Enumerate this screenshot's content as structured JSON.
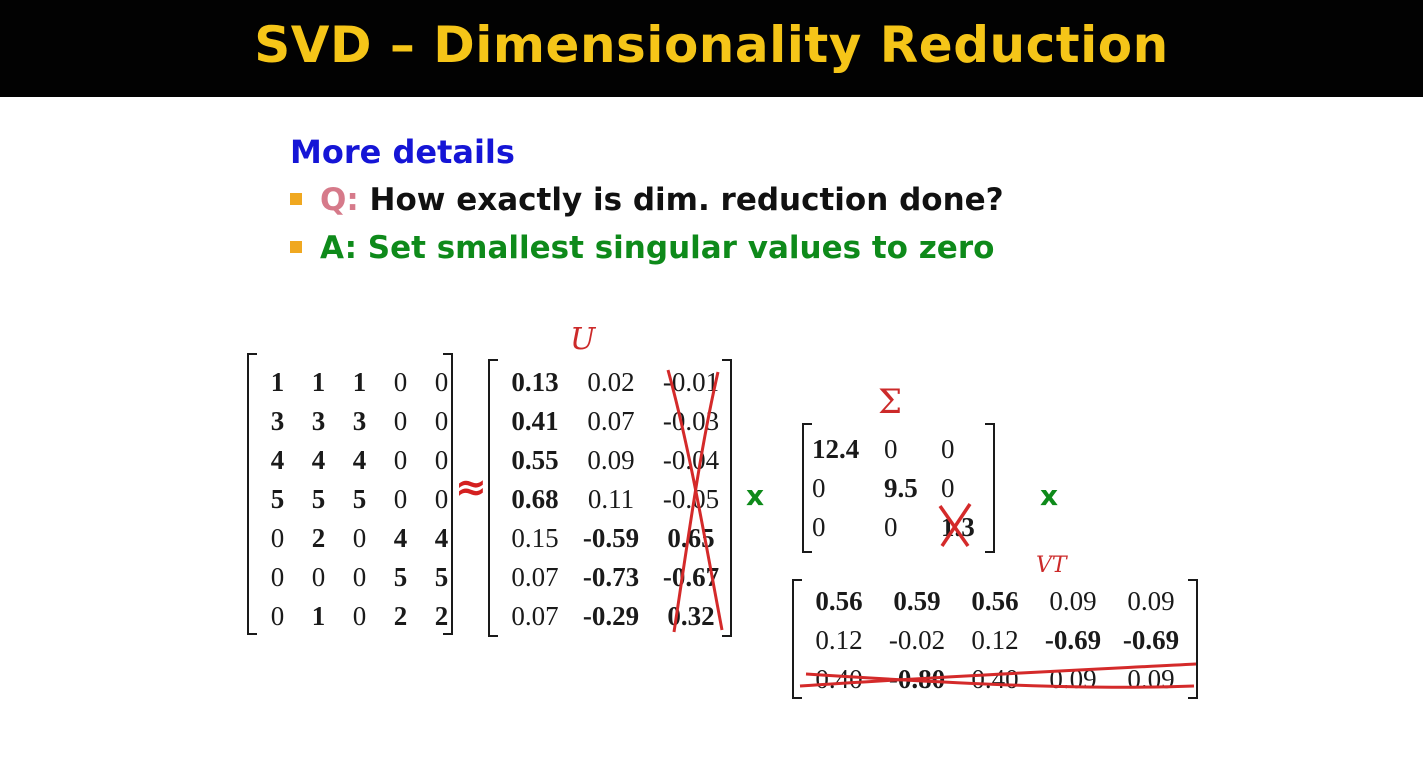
{
  "slide": {
    "title": "SVD – Dimensionality Reduction",
    "heading": "More details",
    "bullets": [
      {
        "label": "Q:",
        "text": "How exactly is dim. reduction done?"
      },
      {
        "label": "",
        "text": "A: Set smallest singular values to zero"
      }
    ]
  },
  "colors": {
    "title_bar": "#020202",
    "title_text": "#f5c518",
    "heading": "#1515d6",
    "q_label": "#d67a8a",
    "answer": "#0e8a1a",
    "bullet": "#f0a820",
    "ink": "#cc2a2a"
  },
  "operators": {
    "approx": "≈",
    "times": "x"
  },
  "annotations": {
    "u": "U",
    "sigma": "Σ",
    "vt": "VT"
  },
  "matrices": {
    "A": {
      "rows": [
        [
          {
            "v": "1",
            "b": true
          },
          {
            "v": "1",
            "b": true
          },
          {
            "v": "1",
            "b": true
          },
          {
            "v": "0",
            "b": false
          },
          {
            "v": "0",
            "b": false
          }
        ],
        [
          {
            "v": "3",
            "b": true
          },
          {
            "v": "3",
            "b": true
          },
          {
            "v": "3",
            "b": true
          },
          {
            "v": "0",
            "b": false
          },
          {
            "v": "0",
            "b": false
          }
        ],
        [
          {
            "v": "4",
            "b": true
          },
          {
            "v": "4",
            "b": true
          },
          {
            "v": "4",
            "b": true
          },
          {
            "v": "0",
            "b": false
          },
          {
            "v": "0",
            "b": false
          }
        ],
        [
          {
            "v": "5",
            "b": true
          },
          {
            "v": "5",
            "b": true
          },
          {
            "v": "5",
            "b": true
          },
          {
            "v": "0",
            "b": false
          },
          {
            "v": "0",
            "b": false
          }
        ],
        [
          {
            "v": "0",
            "b": false
          },
          {
            "v": "2",
            "b": true
          },
          {
            "v": "0",
            "b": false
          },
          {
            "v": "4",
            "b": true
          },
          {
            "v": "4",
            "b": true
          }
        ],
        [
          {
            "v": "0",
            "b": false
          },
          {
            "v": "0",
            "b": false
          },
          {
            "v": "0",
            "b": false
          },
          {
            "v": "5",
            "b": true
          },
          {
            "v": "5",
            "b": true
          }
        ],
        [
          {
            "v": "0",
            "b": false
          },
          {
            "v": "1",
            "b": true
          },
          {
            "v": "0",
            "b": false
          },
          {
            "v": "2",
            "b": true
          },
          {
            "v": "2",
            "b": true
          }
        ]
      ]
    },
    "U": {
      "rows": [
        [
          {
            "v": "0.13",
            "b": true
          },
          {
            "v": "0.02",
            "b": false
          },
          {
            "v": "-0.01",
            "b": false
          }
        ],
        [
          {
            "v": "0.41",
            "b": true
          },
          {
            "v": "0.07",
            "b": false
          },
          {
            "v": "-0.03",
            "b": false
          }
        ],
        [
          {
            "v": "0.55",
            "b": true
          },
          {
            "v": "0.09",
            "b": false
          },
          {
            "v": "-0.04",
            "b": false
          }
        ],
        [
          {
            "v": "0.68",
            "b": true
          },
          {
            "v": "0.11",
            "b": false
          },
          {
            "v": "-0.05",
            "b": false
          }
        ],
        [
          {
            "v": "0.15",
            "b": false
          },
          {
            "v": "-0.59",
            "b": true
          },
          {
            "v": "0.65",
            "b": true
          }
        ],
        [
          {
            "v": "0.07",
            "b": false
          },
          {
            "v": "-0.73",
            "b": true
          },
          {
            "v": "-0.67",
            "b": true
          }
        ],
        [
          {
            "v": "0.07",
            "b": false
          },
          {
            "v": "-0.29",
            "b": true
          },
          {
            "v": "0.32",
            "b": true
          }
        ]
      ]
    },
    "Sigma": {
      "rows": [
        [
          {
            "v": "12.4",
            "b": true
          },
          {
            "v": "0",
            "b": false
          },
          {
            "v": "0",
            "b": false
          }
        ],
        [
          {
            "v": "0",
            "b": false
          },
          {
            "v": "9.5",
            "b": true
          },
          {
            "v": "0",
            "b": false
          }
        ],
        [
          {
            "v": "0",
            "b": false
          },
          {
            "v": "0",
            "b": false
          },
          {
            "v": "1.3",
            "b": true
          }
        ]
      ]
    },
    "VT": {
      "rows": [
        [
          {
            "v": "0.56",
            "b": true
          },
          {
            "v": "0.59",
            "b": true
          },
          {
            "v": "0.56",
            "b": true
          },
          {
            "v": "0.09",
            "b": false
          },
          {
            "v": "0.09",
            "b": false
          }
        ],
        [
          {
            "v": "0.12",
            "b": false
          },
          {
            "v": "-0.02",
            "b": false
          },
          {
            "v": "0.12",
            "b": false
          },
          {
            "v": "-0.69",
            "b": true
          },
          {
            "v": "-0.69",
            "b": true
          }
        ],
        [
          {
            "v": "0.40",
            "b": false
          },
          {
            "v": "-0.80",
            "b": true
          },
          {
            "v": "0.40",
            "b": false
          },
          {
            "v": "0.09",
            "b": false
          },
          {
            "v": "0.09",
            "b": false
          }
        ]
      ]
    }
  }
}
